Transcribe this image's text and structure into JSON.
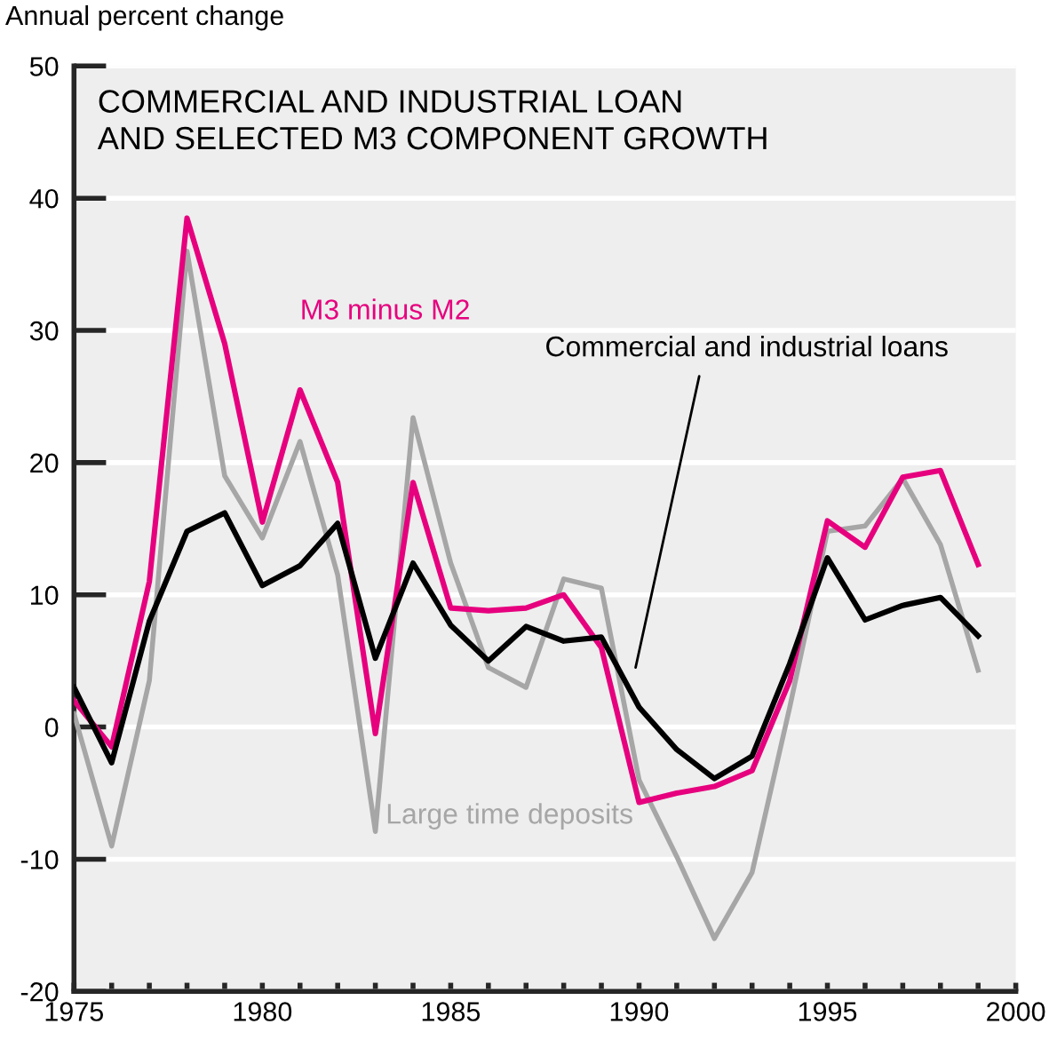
{
  "chart_data": {
    "type": "line",
    "title": "COMMERCIAL AND INDUSTRIAL LOAN\nAND SELECTED M3 COMPONENT GROWTH",
    "ylabel": "Annual percent change",
    "x": [
      1975,
      1976,
      1977,
      1978,
      1979,
      1980,
      1981,
      1982,
      1983,
      1984,
      1985,
      1986,
      1987,
      1988,
      1989,
      1990,
      1991,
      1992,
      1993,
      1994,
      1995,
      1996,
      1997,
      1998,
      1999
    ],
    "series": [
      {
        "name": "Large time deposits",
        "color": "#a6a6a6",
        "values": [
          1,
          -9,
          3.5,
          36,
          19,
          14.3,
          21.6,
          11.5,
          -7.9,
          23.4,
          12.4,
          4.5,
          3,
          11.2,
          10.5,
          -4,
          -9.8,
          -16,
          -11,
          1.5,
          14.8,
          15.2,
          18.8,
          13.8,
          4.3
        ]
      },
      {
        "name": "M3 minus M2",
        "color": "#e6007e",
        "values": [
          2,
          -1.5,
          11,
          38.5,
          29,
          15.5,
          25.5,
          18.5,
          -0.5,
          18.5,
          9,
          8.8,
          9,
          10,
          6,
          -5.7,
          -5,
          -4.5,
          -3.3,
          3.5,
          15.6,
          13.6,
          18.9,
          19.4,
          12.3
        ]
      },
      {
        "name": "Commercial and industrial loans",
        "color": "#000000",
        "values": [
          3,
          -2.7,
          8,
          14.8,
          16.2,
          10.7,
          12.2,
          15.4,
          5.2,
          12.4,
          7.7,
          5,
          7.6,
          6.5,
          6.8,
          1.5,
          -1.7,
          -3.9,
          -2.2,
          4.8,
          12.8,
          8.1,
          9.2,
          9.8,
          6.9
        ]
      }
    ],
    "xlim": [
      1975,
      2000
    ],
    "xticks": [
      1975,
      {
        "value": 1976,
        "label": null
      },
      {
        "value": 1977,
        "label": null
      },
      {
        "value": 1978,
        "label": null
      },
      {
        "value": 1979,
        "label": null
      },
      1980,
      {
        "value": 1981,
        "label": null
      },
      {
        "value": 1982,
        "label": null
      },
      {
        "value": 1983,
        "label": null
      },
      {
        "value": 1984,
        "label": null
      },
      1985,
      {
        "value": 1986,
        "label": null
      },
      {
        "value": 1987,
        "label": null
      },
      {
        "value": 1988,
        "label": null
      },
      {
        "value": 1989,
        "label": null
      },
      1990,
      {
        "value": 1991,
        "label": null
      },
      {
        "value": 1992,
        "label": null
      },
      {
        "value": 1993,
        "label": null
      },
      {
        "value": 1994,
        "label": null
      },
      1995,
      {
        "value": 1996,
        "label": null
      },
      {
        "value": 1997,
        "label": null
      },
      {
        "value": 1998,
        "label": null
      },
      {
        "value": 1999,
        "label": null
      },
      2000
    ],
    "ylim": [
      -20,
      50
    ],
    "yticks": [
      -20,
      -10,
      0,
      10,
      20,
      30,
      40,
      50
    ],
    "grid": "y",
    "legend": false,
    "marker": "none",
    "line_style": "solid"
  }
}
